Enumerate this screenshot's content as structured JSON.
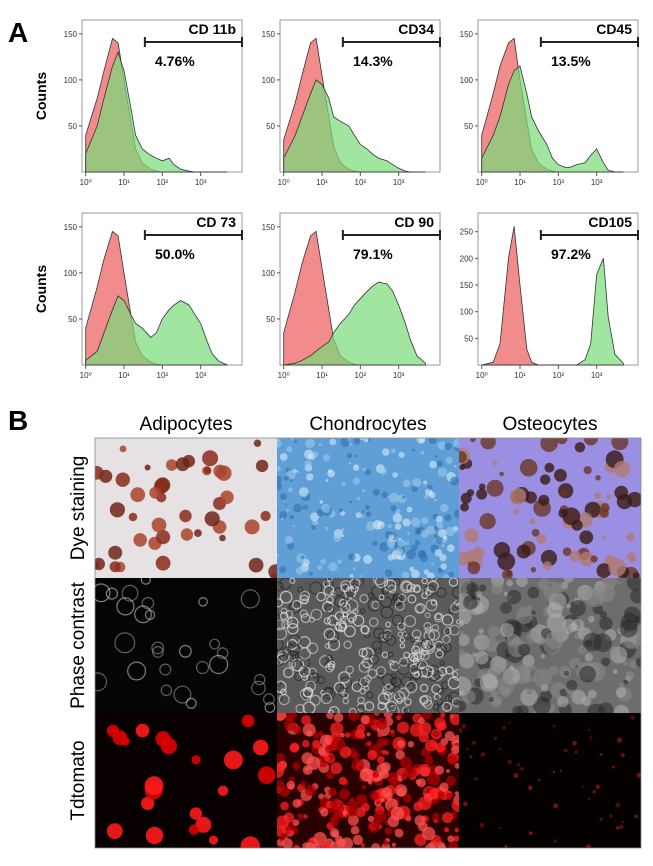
{
  "panel_labels": {
    "a": "A",
    "b": "B"
  },
  "chart_data": [
    {
      "type": "area",
      "title": "CD 11b",
      "annotation": "4.76%",
      "y_label": "Counts",
      "log_x": true,
      "gate_range": [
        35,
        12000
      ],
      "x": [
        1,
        2,
        3,
        5,
        7,
        10,
        15,
        20,
        30,
        50,
        70,
        100,
        150,
        200,
        300,
        500,
        700,
        1000,
        1500,
        2000,
        3000,
        5000
      ],
      "series": [
        {
          "color": "#f07878",
          "values": [
            40,
            80,
            110,
            145,
            140,
            100,
            55,
            25,
            10,
            3,
            1,
            0,
            0,
            0,
            0,
            0,
            0,
            0,
            0,
            0,
            0,
            0
          ]
        },
        {
          "color": "#78dc78",
          "values": [
            20,
            50,
            80,
            115,
            130,
            110,
            70,
            40,
            25,
            18,
            15,
            12,
            15,
            8,
            3,
            1,
            0,
            0,
            0,
            0,
            0,
            0
          ]
        }
      ],
      "xlim": [
        0.8,
        12000
      ],
      "ylim": [
        0,
        165
      ],
      "xticks": [
        {
          "value": 1,
          "label": "10⁰"
        },
        {
          "value": 10,
          "label": "10¹"
        },
        {
          "value": 100,
          "label": "10²"
        },
        {
          "value": 1000,
          "label": "10³"
        }
      ],
      "yticks": [
        50,
        100,
        150
      ]
    },
    {
      "type": "area",
      "title": "CD34",
      "annotation": "14.3%",
      "log_x": true,
      "gate_range": [
        35,
        12000
      ],
      "x": [
        1,
        2,
        3,
        5,
        7,
        10,
        15,
        20,
        30,
        50,
        70,
        100,
        150,
        200,
        300,
        500,
        700,
        1000,
        1500,
        2000,
        3000,
        5000
      ],
      "series": [
        {
          "color": "#f07878",
          "values": [
            35,
            75,
            105,
            140,
            145,
            105,
            60,
            28,
            10,
            3,
            1,
            0,
            0,
            0,
            0,
            0,
            0,
            0,
            0,
            0,
            0,
            0
          ]
        },
        {
          "color": "#78dc78",
          "values": [
            15,
            40,
            60,
            85,
            100,
            95,
            80,
            60,
            55,
            50,
            40,
            30,
            25,
            20,
            15,
            12,
            8,
            4,
            1,
            0,
            0,
            0
          ]
        }
      ],
      "xlim": [
        0.8,
        12000
      ],
      "ylim": [
        0,
        165
      ],
      "xticks": [
        {
          "value": 1,
          "label": "10⁰"
        },
        {
          "value": 10,
          "label": "10¹"
        },
        {
          "value": 100,
          "label": "10²"
        },
        {
          "value": 1000,
          "label": "10³"
        }
      ],
      "yticks": [
        50,
        100,
        150
      ]
    },
    {
      "type": "area",
      "title": "CD45",
      "annotation": "13.5%",
      "log_x": true,
      "gate_range": [
        35,
        12000
      ],
      "x": [
        1,
        2,
        3,
        5,
        7,
        10,
        15,
        20,
        30,
        50,
        70,
        100,
        150,
        200,
        300,
        500,
        700,
        1000,
        1500,
        2000,
        3000,
        5000
      ],
      "series": [
        {
          "color": "#f07878",
          "values": [
            40,
            85,
            115,
            140,
            145,
            100,
            55,
            25,
            10,
            3,
            1,
            0,
            0,
            0,
            0,
            0,
            0,
            0,
            0,
            0,
            0,
            0
          ]
        },
        {
          "color": "#78dc78",
          "values": [
            15,
            40,
            60,
            95,
            110,
            115,
            85,
            60,
            45,
            30,
            15,
            8,
            5,
            5,
            8,
            10,
            18,
            25,
            10,
            2,
            0,
            0
          ]
        }
      ],
      "xlim": [
        0.8,
        12000
      ],
      "ylim": [
        0,
        165
      ],
      "xticks": [
        {
          "value": 1,
          "label": "10⁰"
        },
        {
          "value": 10,
          "label": "10¹"
        },
        {
          "value": 100,
          "label": "10²"
        },
        {
          "value": 1000,
          "label": "10³"
        }
      ],
      "yticks": [
        50,
        100,
        150
      ]
    },
    {
      "type": "area",
      "title": "CD 73",
      "annotation": "50.0%",
      "y_label": "Counts",
      "log_x": true,
      "gate_range": [
        35,
        12000
      ],
      "x": [
        1,
        2,
        3,
        5,
        7,
        10,
        15,
        20,
        30,
        50,
        70,
        100,
        150,
        200,
        300,
        500,
        700,
        1000,
        1500,
        2000,
        3000,
        5000
      ],
      "series": [
        {
          "color": "#f07878",
          "values": [
            40,
            85,
            115,
            145,
            140,
            100,
            55,
            25,
            10,
            3,
            1,
            0,
            0,
            0,
            0,
            0,
            0,
            0,
            0,
            0,
            0,
            0
          ]
        },
        {
          "color": "#78dc78",
          "values": [
            5,
            15,
            35,
            60,
            75,
            70,
            55,
            45,
            40,
            30,
            35,
            50,
            60,
            65,
            70,
            65,
            55,
            45,
            25,
            12,
            4,
            0
          ]
        }
      ],
      "xlim": [
        0.8,
        12000
      ],
      "ylim": [
        0,
        165
      ],
      "xticks": [
        {
          "value": 1,
          "label": "10⁰"
        },
        {
          "value": 10,
          "label": "10¹"
        },
        {
          "value": 100,
          "label": "10²"
        },
        {
          "value": 1000,
          "label": "10³"
        }
      ],
      "yticks": [
        50,
        100,
        150
      ]
    },
    {
      "type": "area",
      "title": "CD 90",
      "annotation": "79.1%",
      "log_x": true,
      "gate_range": [
        35,
        12000
      ],
      "x": [
        1,
        2,
        3,
        5,
        7,
        10,
        15,
        20,
        30,
        50,
        70,
        100,
        150,
        200,
        300,
        500,
        700,
        1000,
        1500,
        2000,
        3000,
        5000
      ],
      "series": [
        {
          "color": "#f07878",
          "values": [
            35,
            80,
            110,
            140,
            145,
            105,
            60,
            28,
            10,
            3,
            1,
            0,
            0,
            0,
            0,
            0,
            0,
            0,
            0,
            0,
            0,
            0
          ]
        },
        {
          "color": "#78dc78",
          "values": [
            0,
            2,
            5,
            10,
            15,
            20,
            25,
            35,
            45,
            55,
            65,
            72,
            80,
            85,
            90,
            88,
            80,
            65,
            45,
            28,
            10,
            2
          ]
        }
      ],
      "xlim": [
        0.8,
        12000
      ],
      "ylim": [
        0,
        165
      ],
      "xticks": [
        {
          "value": 1,
          "label": "10⁰"
        },
        {
          "value": 10,
          "label": "10¹"
        },
        {
          "value": 100,
          "label": "10²"
        },
        {
          "value": 1000,
          "label": "10³"
        }
      ],
      "yticks": [
        50,
        100,
        150
      ]
    },
    {
      "type": "area",
      "title": "CD105",
      "annotation": "97.2%",
      "log_x": true,
      "gate_range": [
        35,
        12000
      ],
      "x": [
        1,
        2,
        3,
        5,
        7,
        10,
        15,
        20,
        30,
        50,
        70,
        100,
        150,
        200,
        300,
        500,
        700,
        1000,
        1500,
        2000,
        3000,
        5000
      ],
      "series": [
        {
          "color": "#f07878",
          "values": [
            0,
            5,
            40,
            200,
            260,
            150,
            30,
            5,
            0,
            0,
            0,
            0,
            0,
            0,
            0,
            0,
            0,
            0,
            0,
            0,
            0,
            0
          ]
        },
        {
          "color": "#78dc78",
          "values": [
            0,
            0,
            0,
            0,
            0,
            0,
            0,
            0,
            0,
            0,
            0,
            0,
            0,
            0,
            0,
            10,
            40,
            170,
            200,
            90,
            20,
            3
          ]
        }
      ],
      "xlim": [
        0.8,
        12000
      ],
      "ylim": [
        0,
        285
      ],
      "xticks": [
        {
          "value": 1,
          "label": "10⁰"
        },
        {
          "value": 10,
          "label": "10¹"
        },
        {
          "value": 100,
          "label": "10²"
        },
        {
          "value": 1000,
          "label": "10³"
        }
      ],
      "yticks": [
        50,
        100,
        150,
        200,
        250
      ]
    }
  ],
  "panel_b": {
    "columns": [
      "Adipocytes",
      "Chondrocytes",
      "Osteocytes"
    ],
    "rows": [
      "Dye staining",
      "Phase contrast",
      "Tdtomato"
    ]
  }
}
